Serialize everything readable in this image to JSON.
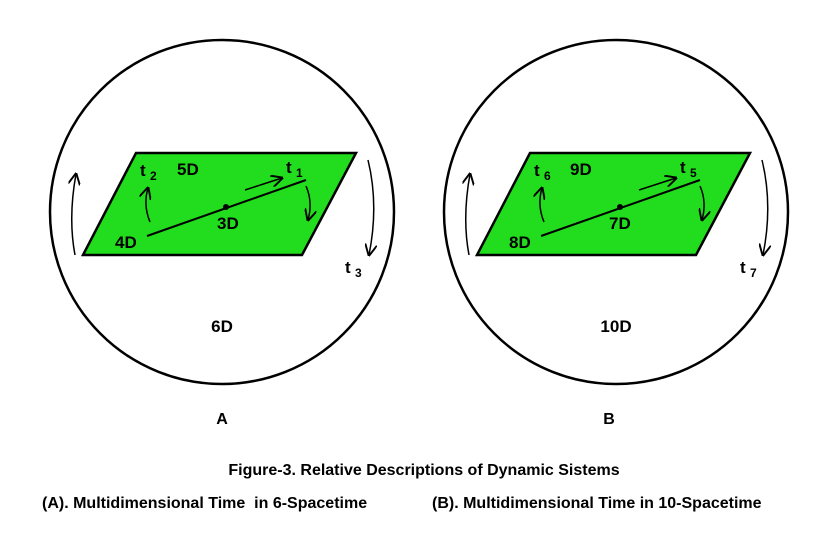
{
  "figure": {
    "caption_title": "Figure-3. Relative Descriptions of Dynamic Sistems",
    "caption_a": "(A). Multidimensional Time  in 6-Spacetime",
    "caption_b": "(B). Multidimensional Time in 10-Spacetime"
  },
  "colors": {
    "plane_fill": "#22dd1e",
    "stroke": "#000000"
  },
  "panels": [
    {
      "letter": "A",
      "outer_dim": "6D",
      "plane_top_label": "5D",
      "center_label": "3D",
      "line_start_label": "4D",
      "t_left": {
        "base": "t",
        "sub": "2"
      },
      "t_line": {
        "base": "t",
        "sub": "1"
      },
      "t_right": {
        "base": "t",
        "sub": "3"
      }
    },
    {
      "letter": "B",
      "outer_dim": "10D",
      "plane_top_label": "9D",
      "center_label": "7D",
      "line_start_label": "8D",
      "t_left": {
        "base": "t",
        "sub": "6"
      },
      "t_line": {
        "base": "t",
        "sub": "5"
      },
      "t_right": {
        "base": "t",
        "sub": "7"
      }
    }
  ]
}
